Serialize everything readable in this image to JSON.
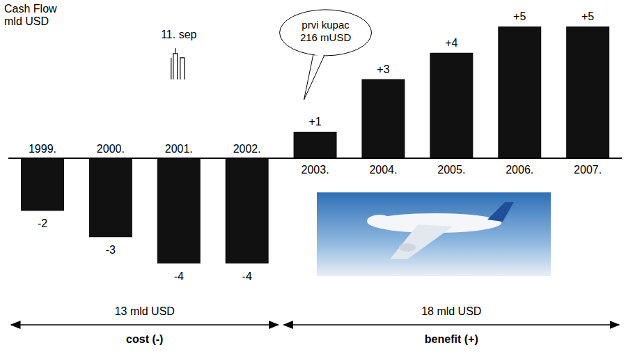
{
  "chart_data": {
    "type": "bar",
    "ylabel": "Cash Flow\nmld USD",
    "categories": [
      "1999.",
      "2000.",
      "2001.",
      "2002.",
      "2003.",
      "2004.",
      "2005.",
      "2006.",
      "2007."
    ],
    "values": [
      -2,
      -3,
      -4,
      -4,
      1,
      3,
      4,
      5,
      5
    ],
    "value_labels": [
      "-2",
      "-3",
      "-4",
      "-4",
      "+1",
      "+3",
      "+4",
      "+5",
      "+5"
    ],
    "data_labels": true,
    "color": "#111111",
    "ylim": [
      -4,
      5
    ],
    "grid": false,
    "annotations": [
      {
        "text": "11. sep",
        "category": "2001."
      },
      {
        "text": "prvi kupac\n216 mUSD",
        "category": "2003."
      }
    ],
    "spans": [
      {
        "from": "1999.",
        "to": "2002.",
        "text": "13 mld USD",
        "label": "cost (-)"
      },
      {
        "from": "2003.",
        "to": "2007.",
        "text": "18 mld USD",
        "label": "benefit (+)"
      }
    ]
  }
}
